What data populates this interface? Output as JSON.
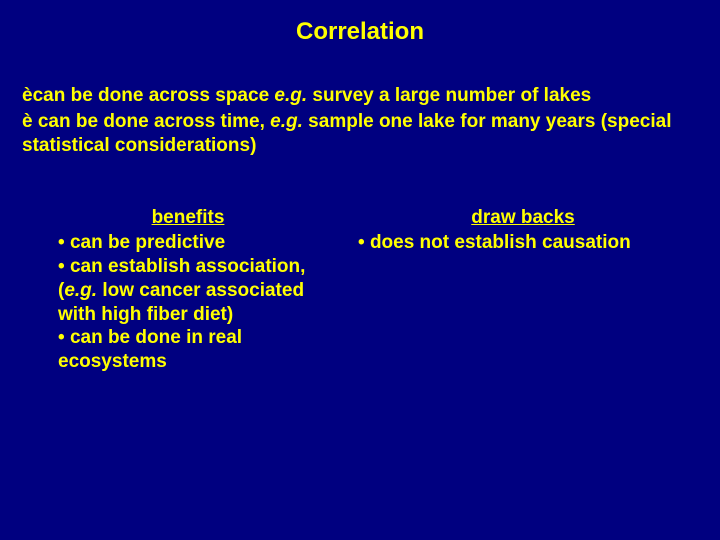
{
  "colors": {
    "background": "#000080",
    "text": "#ffff00"
  },
  "typography": {
    "title_fontsize": 24,
    "body_fontsize": 19,
    "font_family": "Arial",
    "font_weight": "bold"
  },
  "title": "Correlation",
  "arrow_points": {
    "line1_pre": "can be done across space ",
    "line1_eg": "e.g.",
    "line1_post": " survey a large number of lakes",
    "line2_pre": " can be done across time, ",
    "line2_eg": "e.g.",
    "line2_post": " sample one lake for many years (special statistical considerations)"
  },
  "benefits": {
    "header": "benefits",
    "items": {
      "b1": " can be predictive",
      "b2_pre": " can establish association, (",
      "b2_eg": "e.g.",
      "b2_post": " low cancer associated with high fiber diet)",
      "b3": " can be done in real ecosystems"
    }
  },
  "drawbacks": {
    "header": "draw backs",
    "items": {
      "d1": " does not establish causation"
    }
  },
  "glyphs": {
    "arrow": "è",
    "bullet": " • "
  }
}
